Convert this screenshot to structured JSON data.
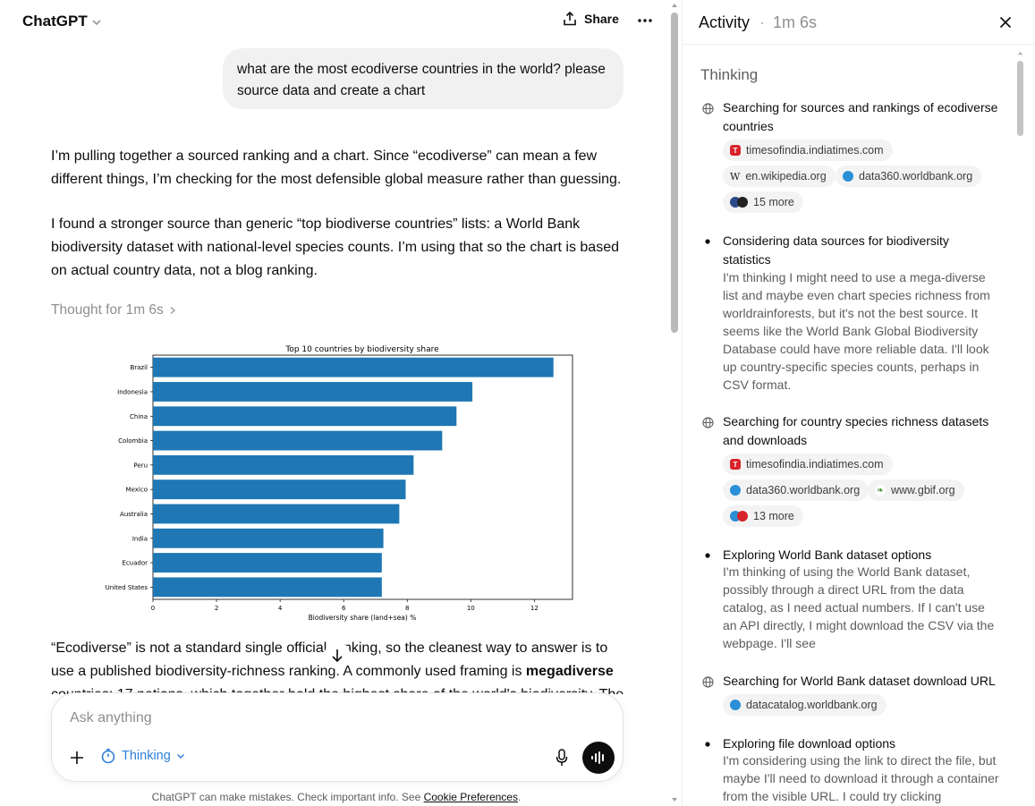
{
  "header": {
    "app_name": "ChatGPT",
    "share_label": "Share"
  },
  "conversation": {
    "user_message": "what are the most ecodiverse countries in the world? please source data and create a chart",
    "para1": "I’m pulling together a sourced ranking and a chart. Since “ecodiverse” can mean a few different things, I’m checking for the most defensible global measure rather than guessing.",
    "para2": "I found a stronger source than generic “top biodiverse countries” lists: a World Bank biodiversity dataset with national-level species counts. I’m using that so the chart is based on actual country data, not a blog ranking.",
    "thought_label": "Thought for 1m 6s",
    "para3_part1": "“Ecodiverse” is not a standard single official ranking, so the cleanest way to answer is to use a published biodiversity-richness ranking. A commonly used framing is ",
    "para3_bold": "megadiverse",
    "para3_cut": "countries: 17 nations, which together hold the highest share of the world's biodiversity. The"
  },
  "chart_data": {
    "type": "bar",
    "orientation": "horizontal",
    "title": "Top 10 countries by biodiversity share",
    "xlabel": "Biodiversity share (land+sea) %",
    "ylabel": "",
    "categories": [
      "Brazil",
      "Indonesia",
      "China",
      "Colombia",
      "Peru",
      "Mexico",
      "Australia",
      "India",
      "Ecuador",
      "United States"
    ],
    "values": [
      12.6,
      10.05,
      9.55,
      9.1,
      8.2,
      7.95,
      7.75,
      7.25,
      7.2,
      7.2
    ],
    "xlim": [
      0,
      13.2
    ],
    "xticks": [
      0,
      2,
      4,
      6,
      8,
      10,
      12
    ],
    "bar_color": "#1f77b4",
    "grid": false
  },
  "composer": {
    "placeholder": "Ask anything",
    "mode_label": "Thinking"
  },
  "footer": {
    "disclaimer": "ChatGPT can make mistakes. Check important info. See ",
    "link_label": "Cookie Preferences",
    "suffix": "."
  },
  "activity": {
    "title": "Activity",
    "separator": "·",
    "elapsed": "1m 6s",
    "section_heading": "Thinking",
    "steps": [
      {
        "kind": "search",
        "title": "Searching for sources and rankings of ecodiverse countries",
        "chips": [
          "timesofindia.indiatimes.com",
          "en.wikipedia.org",
          "data360.worldbank.org",
          "15 more"
        ]
      },
      {
        "kind": "thought",
        "title": "Considering data sources for biodiversity statistics",
        "body": "I'm thinking I might need to use a mega-diverse list and maybe even chart species richness from worldrainforests, but it's not the best source. It seems like the World Bank Global Biodiversity Database could have more reliable data. I'll look up country-specific species counts, perhaps in CSV format."
      },
      {
        "kind": "search",
        "title": "Searching for country species richness datasets and downloads",
        "chips": [
          "timesofindia.indiatimes.com",
          "data360.worldbank.org",
          "www.gbif.org",
          "13 more"
        ]
      },
      {
        "kind": "thought",
        "title": "Exploring World Bank dataset options",
        "body": "I'm thinking of using the World Bank dataset, possibly through a direct URL from the data catalog, as I need actual numbers. If I can't use an API directly, I might download the CSV via the webpage. I'll see"
      },
      {
        "kind": "search",
        "title": "Searching for World Bank dataset download URL",
        "chips": [
          "datacatalog.worldbank.org"
        ]
      },
      {
        "kind": "thought",
        "title": "Exploring file download options",
        "body": "I'm considering using the link to direct the file, but maybe I'll need to download it through a container from the visible URL. I could try clicking"
      }
    ]
  },
  "colors": {
    "accent_blue": "#2f7fd8",
    "bubble_bg": "#f1f1f1",
    "muted_text": "#5d5d5d"
  },
  "icons": [
    "chevron-down-icon",
    "share-icon",
    "more-icon",
    "chevron-right-icon",
    "arrow-down-icon",
    "plus-icon",
    "timer-icon",
    "mic-icon",
    "voice-icon",
    "close-icon",
    "globe-icon",
    "bullet-icon"
  ]
}
